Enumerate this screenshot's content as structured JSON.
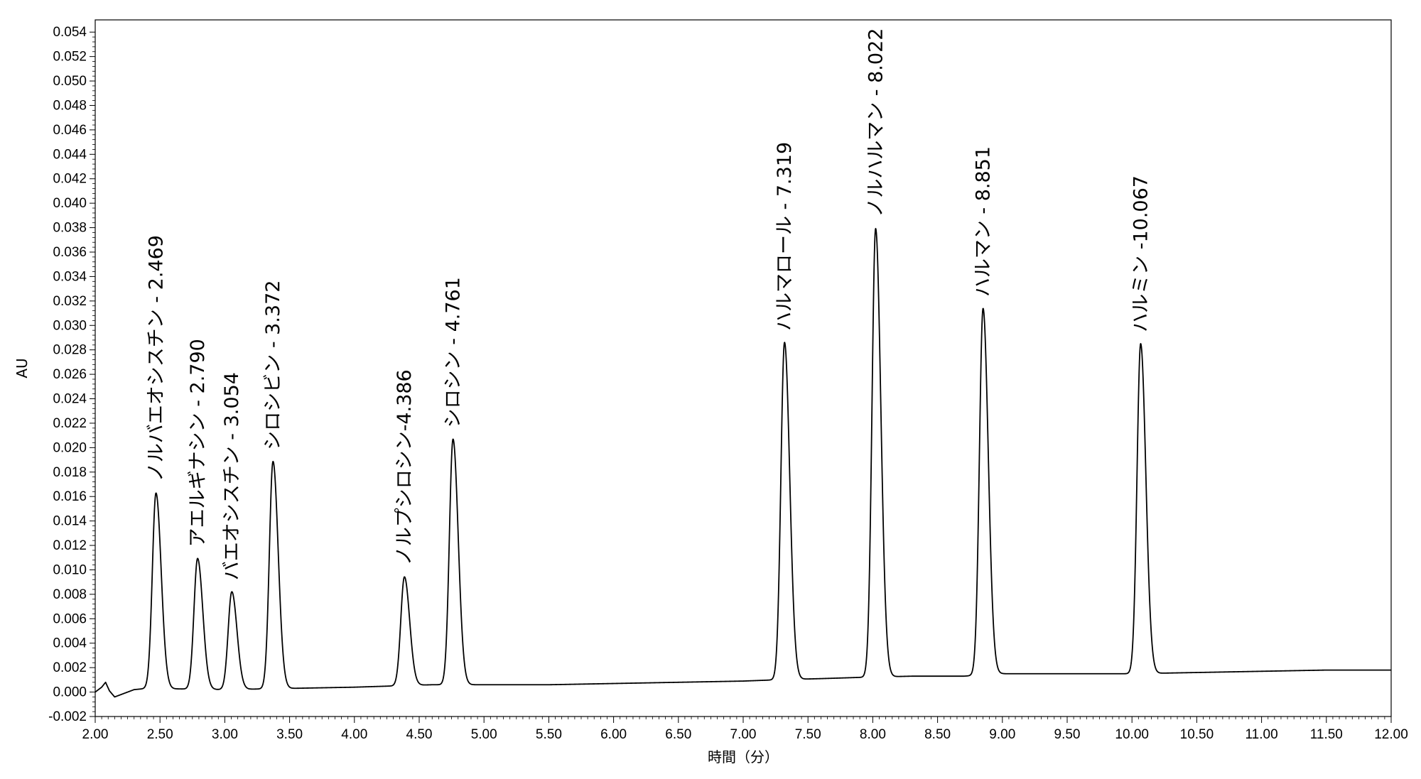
{
  "chart_data": {
    "type": "line",
    "title": "",
    "xlabel": "時間（分）",
    "ylabel": "AU",
    "xlim": [
      2.0,
      12.0
    ],
    "ylim": [
      -0.002,
      0.055
    ],
    "grid": false,
    "legend": "none",
    "line_color": "#000000",
    "x_ticks": [
      2.0,
      2.5,
      3.0,
      3.5,
      4.0,
      4.5,
      5.0,
      5.5,
      6.0,
      6.5,
      7.0,
      7.5,
      8.0,
      8.5,
      9.0,
      9.5,
      10.0,
      10.5,
      11.0,
      11.5,
      12.0
    ],
    "x_tick_labels": [
      "2.00",
      "2.50",
      "3.00",
      "3.50",
      "4.00",
      "4.50",
      "5.00",
      "5.50",
      "6.00",
      "6.50",
      "7.00",
      "7.50",
      "8.00",
      "8.50",
      "9.00",
      "9.50",
      "10.00",
      "10.50",
      "11.00",
      "11.50",
      "12.00"
    ],
    "y_ticks": [
      -0.002,
      0.0,
      0.002,
      0.004,
      0.006,
      0.008,
      0.01,
      0.012,
      0.014,
      0.016,
      0.018,
      0.02,
      0.022,
      0.024,
      0.026,
      0.028,
      0.03,
      0.032,
      0.034,
      0.036,
      0.038,
      0.04,
      0.042,
      0.044,
      0.046,
      0.048,
      0.05,
      0.052,
      0.054
    ],
    "y_tick_labels": [
      "-0.002",
      "0.000",
      "0.002",
      "0.004",
      "0.006",
      "0.008",
      "0.010",
      "0.012",
      "0.014",
      "0.016",
      "0.018",
      "0.020",
      "0.022",
      "0.024",
      "0.026",
      "0.028",
      "0.030",
      "0.032",
      "0.034",
      "0.036",
      "0.038",
      "0.040",
      "0.042",
      "0.044",
      "0.046",
      "0.048",
      "0.050",
      "0.052",
      "0.054"
    ],
    "peaks": [
      {
        "label": "ノルバエオシスチン - 2.469",
        "rt": 2.469,
        "height": 0.016
      },
      {
        "label": "アエルギナシン - 2.790",
        "rt": 2.79,
        "height": 0.0107
      },
      {
        "label": "バエオシスチン - 3.054",
        "rt": 3.054,
        "height": 0.008
      },
      {
        "label": "シロシビン - 3.372",
        "rt": 3.372,
        "height": 0.0186
      },
      {
        "label": "ノルプシロシン-4.386",
        "rt": 4.386,
        "height": 0.0089
      },
      {
        "label": "シロシン - 4.761",
        "rt": 4.761,
        "height": 0.0201
      },
      {
        "label": "ハルマロール - 7.319",
        "rt": 7.319,
        "height": 0.0276
      },
      {
        "label": "ノルハルマン - 8.022",
        "rt": 8.022,
        "height": 0.0367
      },
      {
        "label": "ハルマン - 8.851",
        "rt": 8.851,
        "height": 0.03
      },
      {
        "label": "ハルミン -10.067",
        "rt": 10.067,
        "height": 0.027
      }
    ],
    "baseline": [
      [
        2.0,
        0.0
      ],
      [
        2.05,
        0.0004
      ],
      [
        2.08,
        0.0008
      ],
      [
        2.11,
        0.0001
      ],
      [
        2.15,
        -0.0004
      ],
      [
        2.2,
        -0.0002
      ],
      [
        2.3,
        0.0002
      ],
      [
        2.4,
        0.0003
      ],
      [
        3.0,
        0.0002
      ],
      [
        3.5,
        0.0003
      ],
      [
        4.0,
        0.0004
      ],
      [
        4.3,
        0.0005
      ],
      [
        4.6,
        0.0006
      ],
      [
        5.0,
        0.0006
      ],
      [
        5.5,
        0.0006
      ],
      [
        6.0,
        0.0007
      ],
      [
        6.5,
        0.0008
      ],
      [
        7.0,
        0.0009
      ],
      [
        7.25,
        0.001
      ],
      [
        7.6,
        0.0011
      ],
      [
        7.9,
        0.0012
      ],
      [
        8.3,
        0.0013
      ],
      [
        8.7,
        0.0013
      ],
      [
        9.0,
        0.0015
      ],
      [
        9.5,
        0.0015
      ],
      [
        10.0,
        0.0015
      ],
      [
        10.5,
        0.0016
      ],
      [
        11.0,
        0.0017
      ],
      [
        11.5,
        0.0018
      ],
      [
        12.0,
        0.0018
      ]
    ]
  }
}
